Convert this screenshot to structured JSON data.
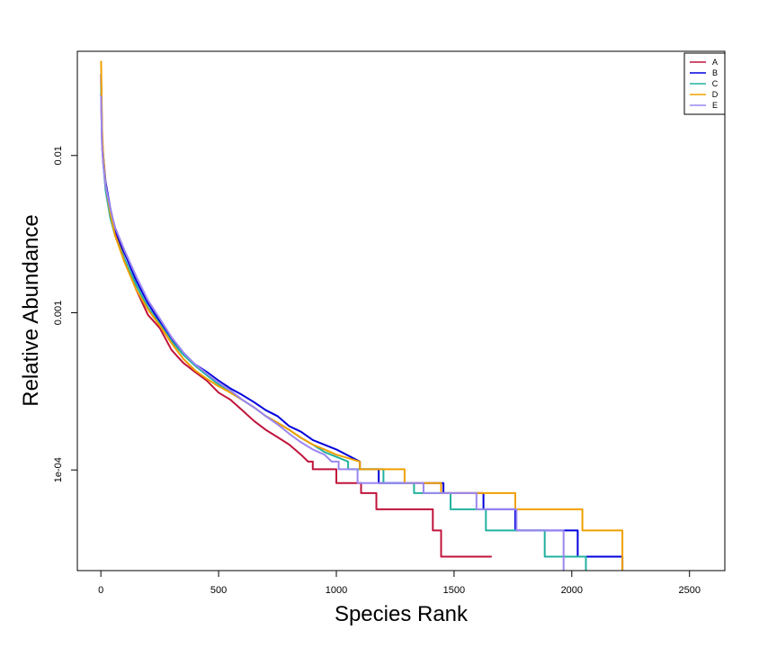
{
  "chart_data": {
    "type": "line",
    "title": "",
    "xlabel": "Species Rank",
    "ylabel": "Relative Abundance",
    "xlim": [
      -100,
      2650
    ],
    "ylim": [
      2.29e-05,
      0.046
    ],
    "y_scale": "log",
    "x_ticks": [
      0,
      500,
      1000,
      1500,
      2000,
      2500
    ],
    "x_tick_labels": [
      "0",
      "500",
      "1000",
      "1500",
      "2000",
      "2500"
    ],
    "y_ticks": [
      0.01,
      0.001,
      0.0001
    ],
    "y_tick_labels": [
      "0.01",
      "0.001",
      "1e-04"
    ],
    "grid": false,
    "legend_position": "top-right",
    "series": [
      {
        "name": "A",
        "color": "#c0143c",
        "points": [
          [
            1,
            0.025
          ],
          [
            3,
            0.016
          ],
          [
            5,
            0.0115
          ],
          [
            10,
            0.009
          ],
          [
            20,
            0.0064
          ],
          [
            40,
            0.0043
          ],
          [
            60,
            0.0033
          ],
          [
            100,
            0.0022
          ],
          [
            150,
            0.0014
          ],
          [
            200,
            0.00097
          ],
          [
            250,
            0.0008
          ],
          [
            300,
            0.00058
          ],
          [
            350,
            0.00048
          ],
          [
            400,
            0.00042
          ],
          [
            450,
            0.00037
          ],
          [
            500,
            0.00031
          ],
          [
            550,
            0.00028
          ],
          [
            600,
            0.00024
          ],
          [
            650,
            0.000205
          ],
          [
            700,
            0.00018
          ],
          [
            750,
            0.000162
          ],
          [
            800,
            0.000145
          ],
          [
            850,
            0.000125
          ],
          [
            880,
            0.000113
          ],
          [
            900,
            0.000113
          ],
          [
            900,
            0.000101
          ],
          [
            1000,
            0.000101
          ],
          [
            1000,
            8.26e-05
          ],
          [
            1105,
            8.26e-05
          ],
          [
            1105,
            7.12e-05
          ],
          [
            1170,
            7.12e-05
          ],
          [
            1170,
            5.62e-05
          ],
          [
            1410,
            5.62e-05
          ],
          [
            1410,
            4.12e-05
          ],
          [
            1445,
            4.12e-05
          ],
          [
            1445,
            2.81e-05
          ],
          [
            1660,
            2.81e-05
          ]
        ]
      },
      {
        "name": "B",
        "color": "#0000dd",
        "points": [
          [
            1,
            0.033
          ],
          [
            3,
            0.02
          ],
          [
            5,
            0.013
          ],
          [
            10,
            0.01
          ],
          [
            20,
            0.0068
          ],
          [
            40,
            0.0046
          ],
          [
            60,
            0.0034
          ],
          [
            100,
            0.0024
          ],
          [
            150,
            0.0016
          ],
          [
            200,
            0.00115
          ],
          [
            250,
            0.00088
          ],
          [
            300,
            0.00067
          ],
          [
            350,
            0.00055
          ],
          [
            400,
            0.00047
          ],
          [
            450,
            0.00042
          ],
          [
            500,
            0.00037
          ],
          [
            550,
            0.00033
          ],
          [
            600,
            0.0003
          ],
          [
            650,
            0.00027
          ],
          [
            700,
            0.00024
          ],
          [
            750,
            0.00022
          ],
          [
            800,
            0.00019
          ],
          [
            850,
            0.000175
          ],
          [
            900,
            0.000155
          ],
          [
            1000,
            0.000135
          ],
          [
            1100,
            0.000113
          ],
          [
            1100,
            0.000101
          ],
          [
            1180,
            0.000101
          ],
          [
            1180,
            8.26e-05
          ],
          [
            1455,
            8.26e-05
          ],
          [
            1455,
            7.12e-05
          ],
          [
            1625,
            7.12e-05
          ],
          [
            1625,
            5.62e-05
          ],
          [
            1760,
            5.62e-05
          ],
          [
            1760,
            4.12e-05
          ],
          [
            2025,
            4.12e-05
          ],
          [
            2025,
            2.81e-05
          ],
          [
            2215,
            2.81e-05
          ],
          [
            2215,
            2.29e-05
          ]
        ]
      },
      {
        "name": "C",
        "color": "#22b2a0",
        "points": [
          [
            1,
            0.028
          ],
          [
            3,
            0.018
          ],
          [
            5,
            0.012
          ],
          [
            10,
            0.009
          ],
          [
            20,
            0.006
          ],
          [
            40,
            0.004
          ],
          [
            60,
            0.0031
          ],
          [
            100,
            0.0022
          ],
          [
            150,
            0.0015
          ],
          [
            200,
            0.00108
          ],
          [
            250,
            0.00085
          ],
          [
            300,
            0.00066
          ],
          [
            350,
            0.00054
          ],
          [
            400,
            0.00046
          ],
          [
            450,
            0.0004
          ],
          [
            500,
            0.00035
          ],
          [
            550,
            0.00031
          ],
          [
            600,
            0.00028
          ],
          [
            650,
            0.00025
          ],
          [
            700,
            0.00022
          ],
          [
            750,
            0.0002
          ],
          [
            800,
            0.00018
          ],
          [
            850,
            0.00016
          ],
          [
            900,
            0.000145
          ],
          [
            950,
            0.00013
          ],
          [
            1050,
            0.000113
          ],
          [
            1050,
            0.000101
          ],
          [
            1200,
            0.000101
          ],
          [
            1200,
            8.26e-05
          ],
          [
            1330,
            8.26e-05
          ],
          [
            1330,
            7.12e-05
          ],
          [
            1485,
            7.12e-05
          ],
          [
            1485,
            5.62e-05
          ],
          [
            1635,
            5.62e-05
          ],
          [
            1635,
            4.12e-05
          ],
          [
            1885,
            4.12e-05
          ],
          [
            1885,
            2.81e-05
          ],
          [
            2060,
            2.81e-05
          ],
          [
            2060,
            2.29e-05
          ]
        ]
      },
      {
        "name": "D",
        "color": "#f0a000",
        "points": [
          [
            1,
            0.04
          ],
          [
            3,
            0.024
          ],
          [
            5,
            0.015
          ],
          [
            10,
            0.01
          ],
          [
            20,
            0.0065
          ],
          [
            40,
            0.0043
          ],
          [
            60,
            0.0031
          ],
          [
            100,
            0.0021
          ],
          [
            150,
            0.0014
          ],
          [
            200,
            0.00105
          ],
          [
            250,
            0.00083
          ],
          [
            300,
            0.00064
          ],
          [
            350,
            0.00051
          ],
          [
            400,
            0.00043
          ],
          [
            450,
            0.00038
          ],
          [
            500,
            0.00034
          ],
          [
            550,
            0.00031
          ],
          [
            600,
            0.00028
          ],
          [
            650,
            0.00025
          ],
          [
            700,
            0.00022
          ],
          [
            750,
            0.0002
          ],
          [
            800,
            0.00018
          ],
          [
            850,
            0.00016
          ],
          [
            900,
            0.000145
          ],
          [
            950,
            0.000135
          ],
          [
            1000,
            0.000125
          ],
          [
            1100,
            0.000113
          ],
          [
            1100,
            0.000101
          ],
          [
            1290,
            0.000101
          ],
          [
            1290,
            8.26e-05
          ],
          [
            1445,
            8.26e-05
          ],
          [
            1445,
            7.12e-05
          ],
          [
            1760,
            7.12e-05
          ],
          [
            1760,
            5.62e-05
          ],
          [
            2045,
            5.62e-05
          ],
          [
            2045,
            4.12e-05
          ],
          [
            2215,
            4.12e-05
          ],
          [
            2215,
            2.29e-05
          ]
        ]
      },
      {
        "name": "E",
        "color": "#9b86f0",
        "points": [
          [
            1,
            0.024
          ],
          [
            3,
            0.016
          ],
          [
            5,
            0.0115
          ],
          [
            10,
            0.0088
          ],
          [
            20,
            0.0064
          ],
          [
            40,
            0.0046
          ],
          [
            60,
            0.0035
          ],
          [
            100,
            0.0025
          ],
          [
            150,
            0.0017
          ],
          [
            200,
            0.0012
          ],
          [
            250,
            0.00092
          ],
          [
            300,
            0.0007
          ],
          [
            350,
            0.00056
          ],
          [
            400,
            0.00047
          ],
          [
            450,
            0.00041
          ],
          [
            500,
            0.00036
          ],
          [
            550,
            0.00032
          ],
          [
            600,
            0.00028
          ],
          [
            650,
            0.00025
          ],
          [
            700,
            0.00022
          ],
          [
            750,
            0.000195
          ],
          [
            800,
            0.00017
          ],
          [
            850,
            0.00015
          ],
          [
            900,
            0.000135
          ],
          [
            950,
            0.000125
          ],
          [
            980,
            0.000113
          ],
          [
            1010,
            0.000113
          ],
          [
            1010,
            0.000101
          ],
          [
            1090,
            0.000101
          ],
          [
            1090,
            8.26e-05
          ],
          [
            1370,
            8.26e-05
          ],
          [
            1370,
            7.12e-05
          ],
          [
            1595,
            7.12e-05
          ],
          [
            1595,
            5.62e-05
          ],
          [
            1765,
            5.62e-05
          ],
          [
            1765,
            4.12e-05
          ],
          [
            1965,
            4.12e-05
          ],
          [
            1965,
            2.29e-05
          ]
        ]
      }
    ]
  }
}
